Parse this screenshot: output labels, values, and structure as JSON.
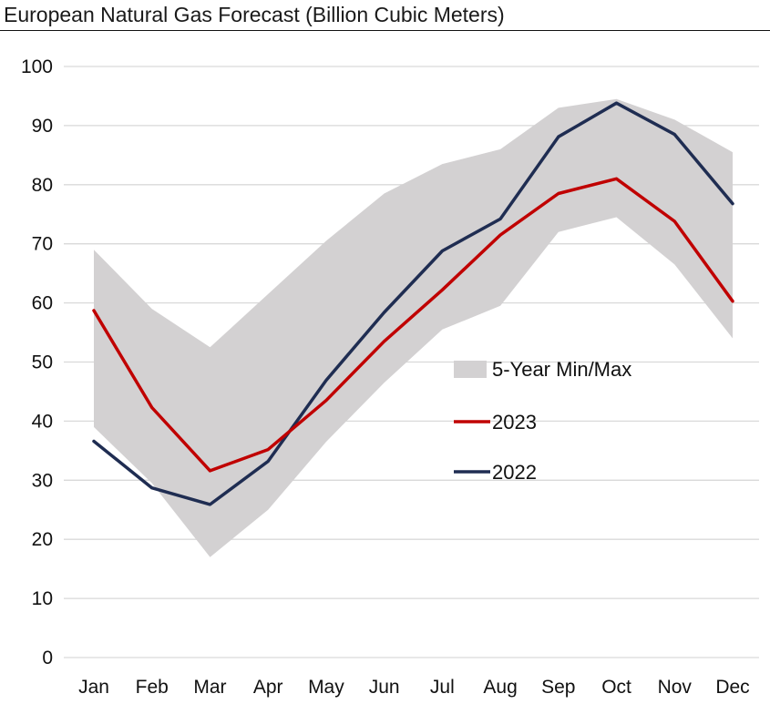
{
  "chart_data": {
    "type": "line",
    "title": "European Natural Gas Forecast (Billion Cubic Meters)",
    "xlabel": "",
    "ylabel": "",
    "categories": [
      "Jan",
      "Feb",
      "Mar",
      "Apr",
      "May",
      "Jun",
      "Jul",
      "Aug",
      "Sep",
      "Oct",
      "Nov",
      "Dec"
    ],
    "ylim": [
      0,
      100
    ],
    "yticks": [
      0,
      10,
      20,
      30,
      40,
      50,
      60,
      70,
      80,
      90,
      100
    ],
    "grid": true,
    "legend_position": "right",
    "band": {
      "name": "5-Year Min/Max",
      "color": "#d3d1d2",
      "min": [
        39,
        29.5,
        17,
        25,
        36.5,
        46.5,
        55.5,
        59.5,
        72,
        74.5,
        66.5,
        54
      ],
      "max": [
        69,
        59,
        52.5,
        61.5,
        70.5,
        78.5,
        83.5,
        86,
        93,
        94.5,
        91,
        85.5
      ]
    },
    "series": [
      {
        "name": "2023",
        "color": "#c00000",
        "values": [
          58.7,
          42.3,
          31.6,
          35.2,
          43.5,
          53.5,
          62.2,
          71.5,
          78.5,
          81,
          73.8,
          60.3
        ]
      },
      {
        "name": "2022",
        "color": "#1f2d52",
        "values": [
          36.6,
          28.7,
          25.9,
          33.2,
          46.9,
          58.4,
          68.8,
          74.2,
          88.1,
          93.8,
          88.5,
          76.8
        ]
      }
    ]
  }
}
